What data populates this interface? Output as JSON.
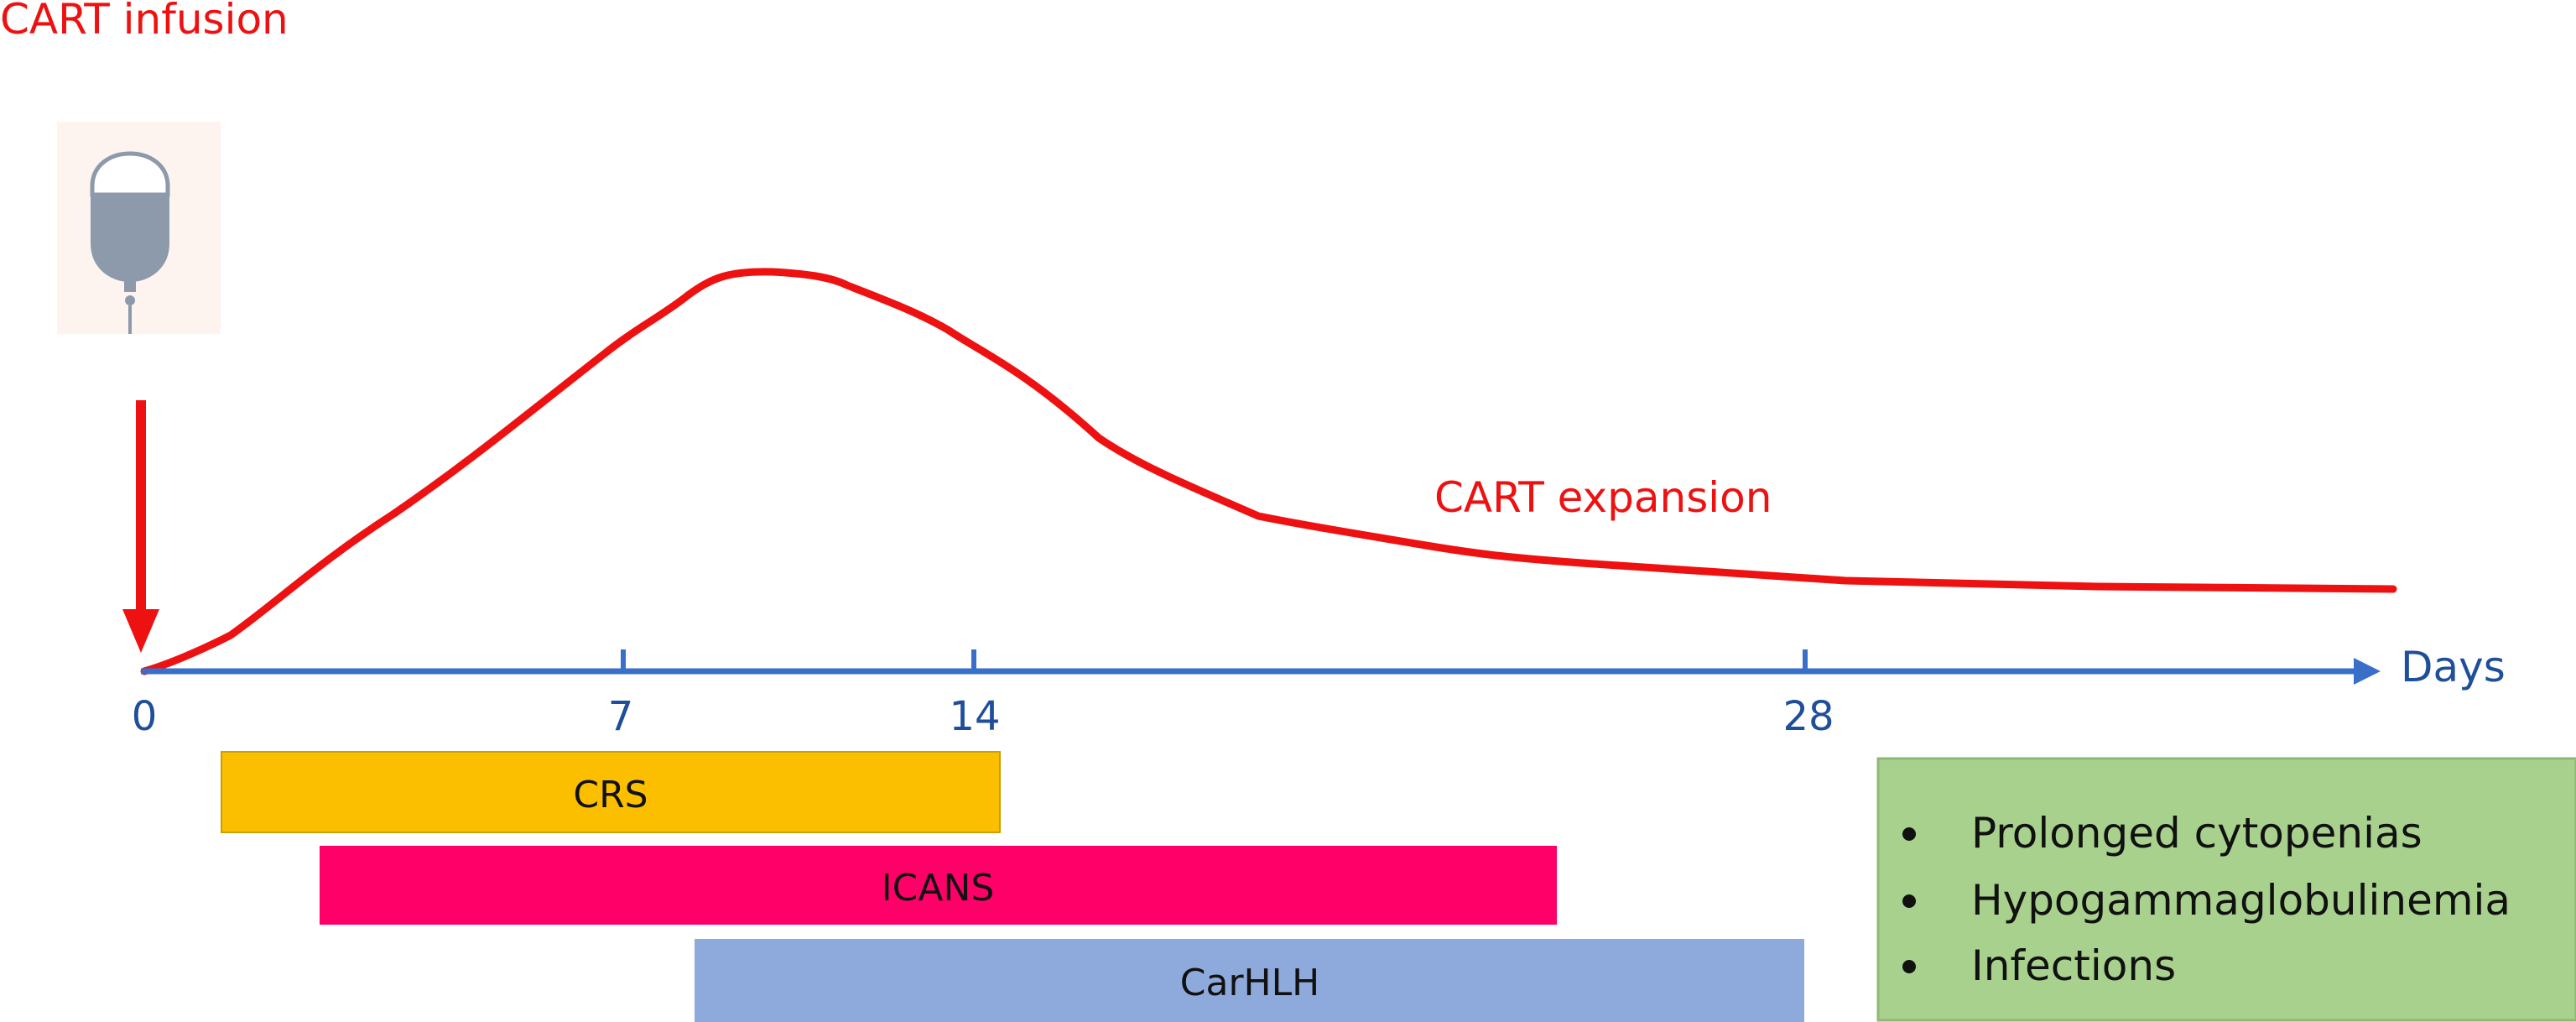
{
  "infusion": {
    "label": "CART infusion",
    "icon": "iv-bag-icon",
    "arrow_color": "#ee1111"
  },
  "curve": {
    "label": "CART expansion",
    "color": "#ee1111"
  },
  "axis": {
    "label": "Days",
    "color": "#3a6fc9",
    "ticks": [
      "0",
      "7",
      "14",
      "28"
    ]
  },
  "bars": [
    {
      "label": "CRS",
      "color": "#fbbf00"
    },
    {
      "label": "ICANS",
      "color": "#ff0068"
    },
    {
      "label": "CarHLH",
      "color": "#8eaadc"
    }
  ],
  "late_effects": {
    "color": "#a9d18e",
    "items": [
      "Prolonged cytopenias",
      "Hypogammaglobulinemia",
      "Infections"
    ]
  }
}
